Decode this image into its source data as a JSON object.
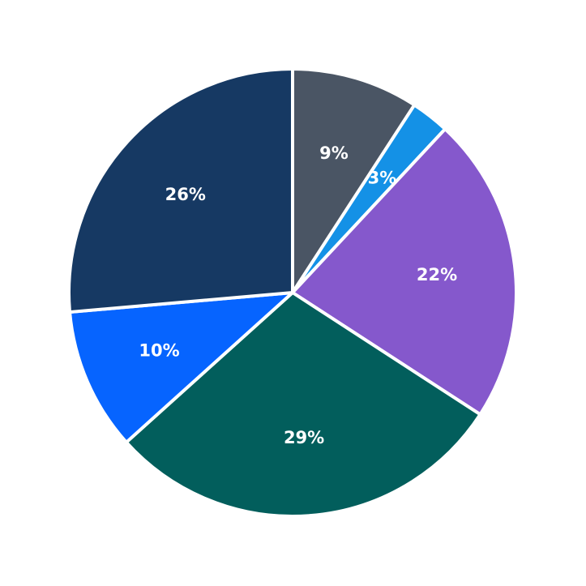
{
  "chart_data": {
    "type": "pie",
    "title": "",
    "start_angle_deg_clockwise_from_top": 0,
    "direction": "clockwise",
    "slices": [
      {
        "label": "9%",
        "value": 9,
        "color": "#4a5564",
        "start": 0,
        "end": 33
      },
      {
        "label": "3%",
        "value": 3,
        "color": "#1491e6",
        "start": 33,
        "end": 43
      },
      {
        "label": "22%",
        "value": 22,
        "color": "#8558cc",
        "start": 43,
        "end": 123
      },
      {
        "label": "29%",
        "value": 29,
        "color": "#025e5c",
        "start": 123,
        "end": 228
      },
      {
        "label": "10%",
        "value": 10,
        "color": "#0664ff",
        "start": 228,
        "end": 265
      },
      {
        "label": "26%",
        "value": 26,
        "color": "#163963",
        "start": 265,
        "end": 360
      }
    ],
    "legend": null,
    "center": [
      361,
      361
    ],
    "radius": 276
  }
}
